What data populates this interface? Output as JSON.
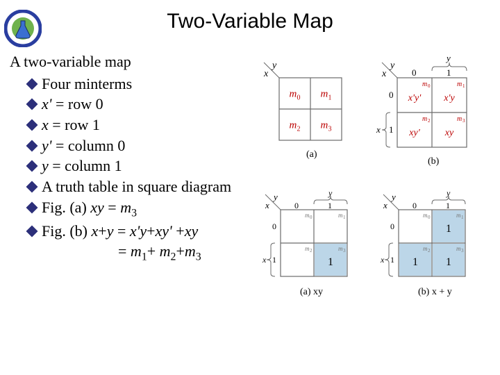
{
  "title": "Two-Variable Map",
  "intro": "A two-variable map",
  "bullet_color": "#2c2f7a",
  "bullets": {
    "b1": "Four minterms",
    "b2_pre": "x' ",
    "b2_post": "= row 0",
    "b3_pre": "x ",
    "b3_post": "= row 1",
    "b4_pre": "y' ",
    "b4_post": "= column 0",
    "b5_pre": "y ",
    "b5_post": "= column 1",
    "b6": "A truth table in square diagram",
    "b7_pre": "Fig. (a) ",
    "b7_xy": "xy ",
    "b7_eq": "= ",
    "b7_m": "m",
    "b7_sub": "3",
    "b8_pre": "Fig. (b) ",
    "b8_lhs_i": "x",
    "b8_lhs_plus": "+",
    "b8_lhs_i2": "y",
    "b8_eq1": " = ",
    "b8_r1": "x'y",
    "b8_r2": "+",
    "b8_r3": "xy'",
    "b8_r4": " +",
    "b8_r5": "xy",
    "b8_line2_eq": "= ",
    "b8_m1": "m",
    "b8_s1": "1",
    "b8_plus1": "+ ",
    "b8_m2": "m",
    "b8_s2": "2",
    "b8_plus2": "+",
    "b8_m3": "m",
    "b8_s3": "3"
  },
  "figs": {
    "grid_stroke": "#6b6b6b",
    "label_color": "#000000",
    "fill_highlight": "#bcd6e8",
    "top": {
      "a": {
        "caption": "(a)",
        "y_label": "y",
        "x_label": "x",
        "cells": [
          "m",
          "m",
          "m",
          "m"
        ],
        "subs": [
          "0",
          "1",
          "2",
          "3"
        ]
      },
      "b": {
        "caption": "(b)",
        "y_label": "y",
        "x_label": "x",
        "col0": "0",
        "col1": "1",
        "row0": "0",
        "row1": "1",
        "cells": [
          "x'y'",
          "x'y",
          "xy'",
          "xy"
        ],
        "m_subs": [
          "0",
          "1",
          "2",
          "3"
        ]
      }
    },
    "bottom": {
      "a": {
        "caption": "(a) xy",
        "y_label": "y",
        "x_label": "x",
        "col0": "0",
        "col1": "1",
        "row0": "0",
        "row1": "1",
        "m_subs": [
          "0",
          "1",
          "2",
          "3"
        ],
        "ones": [
          [
            1,
            1
          ]
        ]
      },
      "b": {
        "caption": "(b) x + y",
        "y_label": "y",
        "x_label": "x",
        "col0": "0",
        "col1": "1",
        "row0": "0",
        "row1": "1",
        "m_subs": [
          "0",
          "1",
          "2",
          "3"
        ],
        "ones": [
          [
            0,
            1
          ],
          [
            1,
            0
          ],
          [
            1,
            1
          ]
        ]
      }
    }
  },
  "logo": {
    "ring_color": "#2a3ea0",
    "inner_color": "#6fb24d",
    "flask_color": "#3a6fd1"
  }
}
